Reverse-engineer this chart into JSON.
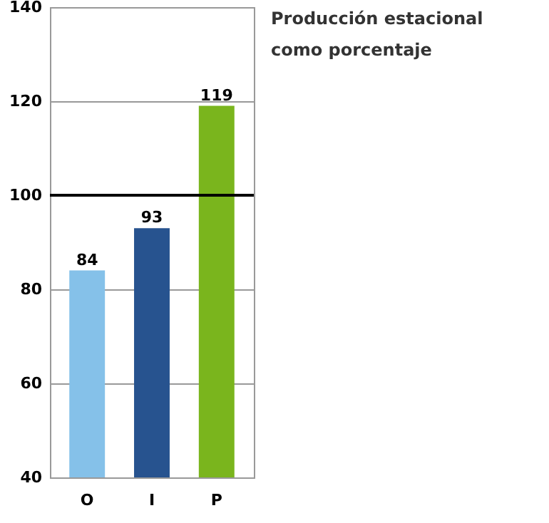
{
  "chart_data": {
    "type": "bar",
    "title": "Producción estacional como porcentaje",
    "categories": [
      "O",
      "I",
      "P"
    ],
    "values": [
      84,
      93,
      119
    ],
    "colors": [
      "#85c1e9",
      "#27538f",
      "#7ab51d"
    ],
    "ylim": [
      40,
      140
    ],
    "yticks": [
      40,
      60,
      80,
      100,
      120,
      140
    ],
    "grid": "y",
    "data_labels": true,
    "ref_lines": [
      {
        "axis": "y",
        "value": 100,
        "color": "#000000"
      }
    ]
  }
}
